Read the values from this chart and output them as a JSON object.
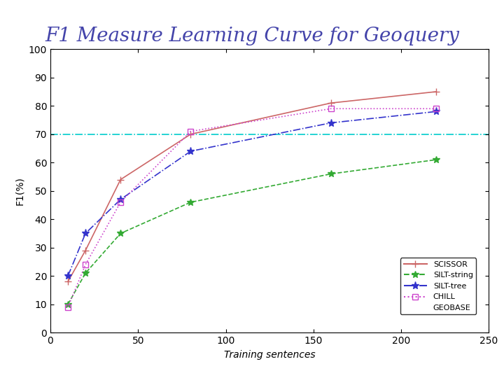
{
  "title": "F1 Measure Learning Curve for Geoquery",
  "xlabel": "Training sentences",
  "ylabel": "F1(%)",
  "xlim": [
    0,
    250
  ],
  "ylim": [
    0,
    100
  ],
  "xticks": [
    0,
    50,
    100,
    150,
    200,
    250
  ],
  "yticks": [
    0,
    10,
    20,
    30,
    40,
    50,
    60,
    70,
    80,
    90,
    100
  ],
  "hline_y": 70,
  "hline_color": "#00CCCC",
  "series": [
    {
      "name": "SCISSOR",
      "x": [
        10,
        20,
        40,
        80,
        160,
        220
      ],
      "y": [
        18,
        29,
        54,
        70,
        81,
        85
      ],
      "color": "#CC6666",
      "linestyle": "-",
      "marker": "+",
      "markersize": 7,
      "linewidth": 1.2,
      "markerfacecolor": "#CC6666"
    },
    {
      "name": "SILT-string",
      "x": [
        10,
        20,
        40,
        80,
        160,
        220
      ],
      "y": [
        10,
        21,
        35,
        46,
        56,
        61
      ],
      "color": "#33AA33",
      "linestyle": "--",
      "marker": "*",
      "markersize": 7,
      "linewidth": 1.2,
      "markerfacecolor": "#33AA33"
    },
    {
      "name": "SILT-tree",
      "x": [
        10,
        20,
        40,
        80,
        160,
        220
      ],
      "y": [
        20,
        35,
        47,
        64,
        74,
        78
      ],
      "color": "#3333CC",
      "linestyle": "-.",
      "marker": "*",
      "markersize": 8,
      "linewidth": 1.2,
      "markerfacecolor": "#3333CC"
    },
    {
      "name": "CHILL",
      "x": [
        10,
        20,
        40,
        80,
        160,
        220
      ],
      "y": [
        9,
        24,
        46,
        71,
        79,
        79
      ],
      "color": "#CC44CC",
      "linestyle": ":",
      "marker": "s",
      "markersize": 6,
      "linewidth": 1.2,
      "markerfacecolor": "none"
    },
    {
      "name": "GEOBASE",
      "x": [],
      "y": [],
      "color": "#999999",
      "linestyle": "-",
      "marker": "",
      "markersize": 0,
      "linewidth": 1.0,
      "markerfacecolor": "#999999"
    }
  ],
  "background_color": "#FFFFFF",
  "plot_bg_color": "#FFFFFF",
  "title_color": "#4444AA",
  "title_fontsize": 20,
  "title_fontstyle": "italic",
  "title_fontfamily": "serif"
}
